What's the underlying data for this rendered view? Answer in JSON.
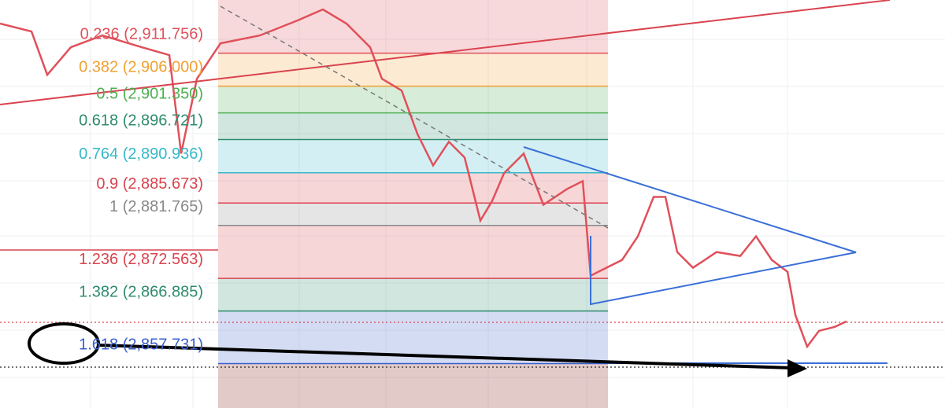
{
  "chart_data": {
    "type": "line",
    "series": [
      {
        "color": "#e0505a",
        "x": [
          0,
          40,
          60,
          90,
          130,
          180,
          215,
          230,
          250,
          280,
          330,
          380,
          410,
          440,
          470,
          485,
          510,
          530,
          550,
          570,
          590,
          610,
          625,
          640,
          665,
          690,
          720,
          740,
          750,
          770,
          790,
          810,
          830,
          845,
          860,
          880,
          910,
          940,
          960,
          980,
          1000,
          1010,
          1025,
          1040,
          1060,
          1075
        ],
        "values": [
          2916.89,
          2915.52,
          2907.98,
          2912.78,
          2914.83,
          2912.78,
          2911.41,
          2894.27,
          2907.29,
          2913.46,
          2914.83,
          2917.57,
          2919.36,
          2916.89,
          2912.78,
          2907.29,
          2905.24,
          2897.7,
          2892.22,
          2896.33,
          2893.59,
          2882.62,
          2886.05,
          2890.85,
          2894.27,
          2885.36,
          2888.11,
          2889.48,
          2873.03,
          2874.4,
          2875.77,
          2879.88,
          2886.73,
          2886.73,
          2877.14,
          2874.4,
          2877.14,
          2876.46,
          2879.88,
          2875.77,
          2873.71,
          2866.18,
          2860.69,
          2863.43,
          2864.12,
          2865.08
        ]
      }
    ],
    "xlim": [
      0,
      1200
    ],
    "ylim": [
      2850,
      2921
    ],
    "fib_levels": [
      {
        "ratio": 0.236,
        "price": {
          "value": 2911.756,
          "label": "(2,911.756)"
        },
        "color": "#e0505a"
      },
      {
        "ratio": 0.382,
        "price": {
          "value": 2906.0,
          "label": "(2,906.000)"
        },
        "color": "#f0a030"
      },
      {
        "ratio": 0.5,
        "price": {
          "value": 2901.35,
          "label": "(2,901.350)"
        },
        "color": "#4caf50"
      },
      {
        "ratio": 0.618,
        "price": {
          "value": 2896.721,
          "label": "(2,896.721)"
        },
        "color": "#2e8b6e"
      },
      {
        "ratio": 0.764,
        "price": {
          "value": 2890.936,
          "label": "(2,890.936)"
        },
        "color": "#36b8c8"
      },
      {
        "ratio": 0.9,
        "price": {
          "value": 2885.673,
          "label": "(2,885.673)"
        },
        "color": "#d9434e"
      },
      {
        "ratio": 1,
        "price": {
          "value": 2881.765,
          "label": "(2,881.765)"
        },
        "color": "#888888"
      },
      {
        "ratio": 1.236,
        "price": {
          "value": 2872.563,
          "label": "(2,872.563)"
        },
        "color": "#d9434e"
      },
      {
        "ratio": 1.382,
        "price": {
          "value": 2866.885,
          "label": "(2,866.885)"
        },
        "color": "#2e8b6e"
      },
      {
        "ratio": 1.618,
        "price": {
          "value": 2857.731,
          "label": "(2,857.731)"
        },
        "color": "#3a5fcd"
      }
    ]
  }
}
